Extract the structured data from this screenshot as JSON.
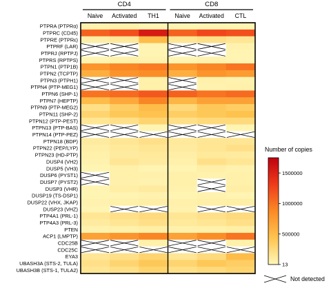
{
  "chart_data": {
    "type": "heatmap",
    "groups": [
      {
        "label": "CD4",
        "columns": [
          "Naive",
          "Activated",
          "TH1"
        ]
      },
      {
        "label": "CD8",
        "columns": [
          "Naive",
          "Activated",
          "CTL"
        ]
      }
    ],
    "columns": [
      "Naive",
      "Activated",
      "TH1",
      "Naive",
      "Activated",
      "CTL"
    ],
    "rows": [
      "PTPRA (PTPRα)",
      "PTPRC (CD45)",
      "PTPRE (PTPRε)",
      "PTPRF (LAR)",
      "PTPRJ (RPTPJ)",
      "PTPRS (RPTPS)",
      "PTPN1 (PTP1B)",
      "PTPN2 (TCPTP)",
      "PTPN3 (PTPH1)",
      "PTPN4 (PTP-MEG1)",
      "PTPN6 (SHP-1)",
      "PTPN7 (HEPTP)",
      "PTPN9 (PTP-MEG2)",
      "PTPN11 (SHP-2)",
      "PTPN12 (PTP-PEST)",
      "PTPN13 (PTP-BAS)",
      "PTPN14 (PTP-PEZ)",
      "PTPN18 (BDP)",
      "PTPN22 (PEP/LYP)",
      "PTPN23 (HD-PTP)",
      "DUSP4 (VH2)",
      "DUSP5 (VH3)",
      "DUSP6 (PYST1)",
      "DUSP7 (PYST2)",
      "DUSP3 (VHR)",
      "DUSP19 (TS-DSP1)",
      "DUSP22 (VHX, JKAP)",
      "DUSP23 (VHZ)",
      "PTP4A1 (PRL-1)",
      "PTP4A3 (PRL-3)",
      "PTEN",
      "ACP1 (LMPTP)",
      "CDC25B",
      "CDC25C",
      "EYA3",
      "UBASH3A (STS-2, TULA)",
      "UBASH3B (STS-1, TULA2)"
    ],
    "values": [
      [
        40000,
        60000,
        30000,
        20000,
        30000,
        20000
      ],
      [
        1100000,
        1200000,
        1550000,
        1100000,
        1250000,
        1200000
      ],
      [
        80000,
        130000,
        500000,
        150000,
        200000,
        150000
      ],
      [
        null,
        null,
        30000,
        null,
        null,
        40000
      ],
      [
        null,
        null,
        20000,
        null,
        null,
        30000
      ],
      [
        30000,
        60000,
        40000,
        30000,
        40000,
        30000
      ],
      [
        800000,
        900000,
        950000,
        800000,
        900000,
        1000000
      ],
      [
        600000,
        800000,
        850000,
        600000,
        800000,
        750000
      ],
      [
        null,
        null,
        60000,
        null,
        50000,
        40000
      ],
      [
        null,
        null,
        60000,
        null,
        40000,
        50000
      ],
      [
        1000000,
        1050000,
        1150000,
        1100000,
        1000000,
        1050000
      ],
      [
        500000,
        650000,
        900000,
        550000,
        700000,
        700000
      ],
      [
        200000,
        350000,
        500000,
        250000,
        400000,
        350000
      ],
      [
        300000,
        400000,
        450000,
        350000,
        400000,
        450000
      ],
      [
        150000,
        200000,
        300000,
        200000,
        250000,
        250000
      ],
      [
        null,
        null,
        30000,
        null,
        null,
        30000
      ],
      [
        null,
        null,
        null,
        null,
        null,
        null
      ],
      [
        100000,
        150000,
        200000,
        120000,
        150000,
        150000
      ],
      [
        80000,
        120000,
        150000,
        100000,
        150000,
        200000
      ],
      [
        60000,
        100000,
        120000,
        80000,
        120000,
        100000
      ],
      [
        40000,
        150000,
        100000,
        50000,
        200000,
        150000
      ],
      [
        20000,
        60000,
        30000,
        30000,
        70000,
        40000
      ],
      [
        null,
        60000,
        50000,
        60000,
        40000,
        60000
      ],
      [
        null,
        50000,
        40000,
        60000,
        null,
        60000
      ],
      [
        30000,
        80000,
        100000,
        40000,
        null,
        80000
      ],
      [
        20000,
        30000,
        40000,
        30000,
        40000,
        30000
      ],
      [
        40000,
        60000,
        80000,
        50000,
        70000,
        80000
      ],
      [
        30000,
        null,
        null,
        40000,
        null,
        null
      ],
      [
        150000,
        200000,
        250000,
        150000,
        200000,
        250000
      ],
      [
        100000,
        150000,
        200000,
        120000,
        150000,
        200000
      ],
      [
        40000,
        60000,
        80000,
        50000,
        60000,
        80000
      ],
      [
        700000,
        800000,
        900000,
        700000,
        850000,
        1000000
      ],
      [
        null,
        null,
        50000,
        null,
        null,
        50000
      ],
      [
        null,
        null,
        null,
        null,
        null,
        null
      ],
      [
        150000,
        200000,
        300000,
        150000,
        250000,
        500000
      ],
      [
        200000,
        300000,
        400000,
        300000,
        400000,
        350000
      ],
      [
        150000,
        200000,
        300000,
        200000,
        250000,
        300000
      ]
    ],
    "color_scale": {
      "title": "Number of copies",
      "min": 13,
      "max": 1750000,
      "ticks": [
        13,
        500000,
        1000000,
        1500000
      ],
      "tick_labels": [
        "13",
        "500000",
        "1000000",
        "1500000"
      ],
      "colors": [
        "#fff7b8",
        "#fec44f",
        "#fb8a25",
        "#ef3b1a",
        "#c0000f"
      ]
    },
    "not_detected_label": "Not detected",
    "grid": false,
    "legend_position": "right"
  }
}
